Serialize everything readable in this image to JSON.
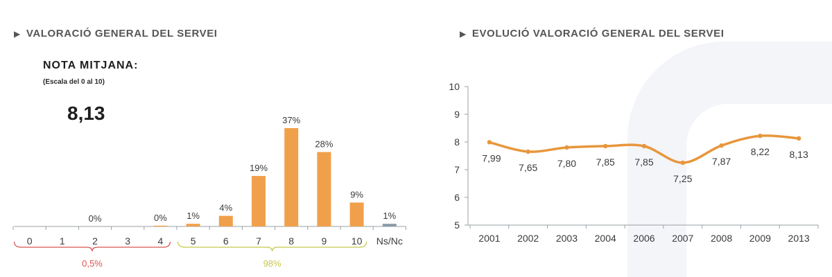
{
  "left_panel": {
    "title": "VALORACIÓ GENERAL DEL SERVEI",
    "nota_title": "NOTA  MITJANA:",
    "nota_scale": "(Escala del 0 al 10)",
    "nota_value": "8,13"
  },
  "right_panel": {
    "title": "EVOLUCIÓ VALORACIÓ GENERAL DEL SERVEI"
  },
  "colors": {
    "bar": "#f0a04b",
    "nsnc": "#8a9aa6",
    "line": "#e8963c",
    "low_group": "#d9534f",
    "high_group": "#c6c84a"
  },
  "chart_data": [
    {
      "type": "bar",
      "categories": [
        "0",
        "1",
        "2",
        "3",
        "4",
        "5",
        "6",
        "7",
        "8",
        "9",
        "10",
        "Ns/Nc"
      ],
      "values": [
        0,
        0,
        0,
        0,
        0.3,
        1,
        4,
        19,
        37,
        28,
        9,
        1
      ],
      "labels": [
        "",
        "",
        "0%",
        "",
        "0%",
        "1%",
        "4%",
        "19%",
        "37%",
        "28%",
        "9%",
        "1%"
      ],
      "groups": [
        {
          "label": "0,5%",
          "from": "0",
          "to": "4"
        },
        {
          "label": "98%",
          "from": "5",
          "to": "10"
        }
      ],
      "ylim": [
        0,
        37
      ]
    },
    {
      "type": "line",
      "x": [
        "2001",
        "2002",
        "2003",
        "2004",
        "2006",
        "2007",
        "2008",
        "2009",
        "2013"
      ],
      "values": [
        7.99,
        7.65,
        7.8,
        7.85,
        7.85,
        7.25,
        7.87,
        8.22,
        8.13
      ],
      "labels": [
        "7,99",
        "7,65",
        "7,80",
        "7,85",
        "7,85",
        "7,25",
        "7,87",
        "8,22",
        "8,13"
      ],
      "yticks": [
        "5",
        "6",
        "7",
        "8",
        "9",
        "10"
      ],
      "ylim": [
        5,
        10
      ]
    }
  ]
}
